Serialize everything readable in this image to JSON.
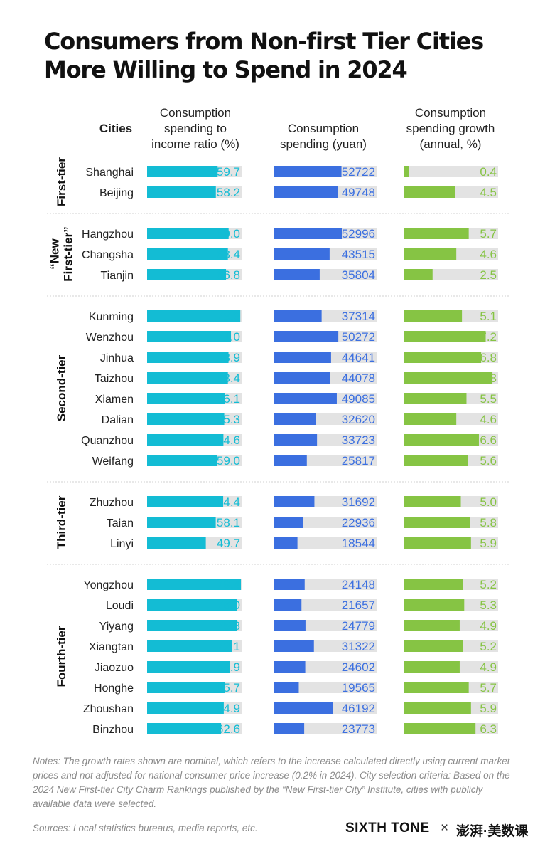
{
  "title": [
    "Consumers from Non-first Tier Cities",
    "More Willing to Spend in 2024"
  ],
  "headers": {
    "cities": "Cities",
    "ratio": [
      "Consumption",
      "spending to",
      "income ratio (%)"
    ],
    "spending": [
      "Consumption",
      "spending (yuan)"
    ],
    "growth": [
      "Consumption",
      "spending growth",
      "(annual, %)"
    ]
  },
  "colors": {
    "ratio": "#13bcd4",
    "spending": "#3b6fe0",
    "growth": "#86c444",
    "track": "#e3e3e3",
    "separator": "#d0d0d0"
  },
  "chart_data": {
    "type": "bar",
    "series": [
      {
        "name": "Consumption spending to income ratio (%)",
        "key": "ratio",
        "max": 80
      },
      {
        "name": "Consumption spending (yuan)",
        "key": "spending",
        "max": 80000
      },
      {
        "name": "Consumption spending growth (annual, %)",
        "key": "growth",
        "max": 8.3
      }
    ],
    "groups": [
      {
        "name": "First-tier",
        "cities": [
          {
            "city": "Shanghai",
            "ratio": "59.7",
            "spending": "52722",
            "growth": "0.4"
          },
          {
            "city": "Beijing",
            "ratio": "58.2",
            "spending": "49748",
            "growth": "4.5"
          }
        ]
      },
      {
        "name": "“New\nFirst-tier”",
        "cities": [
          {
            "city": "Hangzhou",
            "ratio": "69.0",
            "spending": "52996",
            "growth": "5.7"
          },
          {
            "city": "Changsha",
            "ratio": "68.4",
            "spending": "43515",
            "growth": "4.6"
          },
          {
            "city": "Tianjin",
            "ratio": "66.8",
            "spending": "35804",
            "growth": "2.5"
          }
        ]
      },
      {
        "name": "Second-tier",
        "cities": [
          {
            "city": "Kunming",
            "ratio": "78.9",
            "spending": "37314",
            "growth": "5.1"
          },
          {
            "city": "Wenzhou",
            "ratio": "71.0",
            "spending": "50272",
            "growth": "7.2"
          },
          {
            "city": "Jinhua",
            "ratio": "68.9",
            "spending": "44641",
            "growth": "6.8"
          },
          {
            "city": "Taizhou",
            "ratio": "68.4",
            "spending": "44078",
            "growth": "7.8"
          },
          {
            "city": "Xiamen",
            "ratio": "66.1",
            "spending": "49085",
            "growth": "5.5"
          },
          {
            "city": "Dalian",
            "ratio": "65.3",
            "spending": "32620",
            "growth": "4.6"
          },
          {
            "city": "Quanzhou",
            "ratio": "64.6",
            "spending": "33723",
            "growth": "6.6"
          },
          {
            "city": "Weifang",
            "ratio": "59.0",
            "spending": "25817",
            "growth": "5.6"
          }
        ]
      },
      {
        "name": "Third-tier",
        "cities": [
          {
            "city": "Zhuzhou",
            "ratio": "64.4",
            "spending": "31692",
            "growth": "5.0"
          },
          {
            "city": "Taian",
            "ratio": "58.1",
            "spending": "22936",
            "growth": "5.8"
          },
          {
            "city": "Linyi",
            "ratio": "49.7",
            "spending": "18544",
            "growth": "5.9"
          }
        ]
      },
      {
        "name": "Fourth-tier",
        "cities": [
          {
            "city": "Yongzhou",
            "ratio": "79.4",
            "spending": "24148",
            "growth": "5.2"
          },
          {
            "city": "Loudi",
            "ratio": "76.0",
            "spending": "21657",
            "growth": "5.3"
          },
          {
            "city": "Yiyang",
            "ratio": "75.8",
            "spending": "24779",
            "growth": "4.9"
          },
          {
            "city": "Xiangtan",
            "ratio": "72.1",
            "spending": "31322",
            "growth": "5.2"
          },
          {
            "city": "Jiaozuo",
            "ratio": "69.9",
            "spending": "24602",
            "growth": "4.9"
          },
          {
            "city": "Honghe",
            "ratio": "65.7",
            "spending": "19565",
            "growth": "5.7"
          },
          {
            "city": "Zhoushan",
            "ratio": "64.9",
            "spending": "46192",
            "growth": "5.9"
          },
          {
            "city": "Binzhou",
            "ratio": "62.6",
            "spending": "23773",
            "growth": "6.3"
          }
        ]
      }
    ]
  },
  "notes": "Notes: The growth rates shown are nominal, which refers to the increase calculated directly using current market prices and not adjusted for national consumer price increase (0.2% in 2024). City selection criteria: Based on the 2024 New First-tier City Charm Rankings published by the “New First-tier City” Institute, cities with publicly available data were selected.",
  "sources": "Sources: Local statistics bureaus, media reports, etc.",
  "logos": {
    "sixth_tone": "SIXTH TONE",
    "times": "×",
    "partner": "澎湃·美数课"
  }
}
